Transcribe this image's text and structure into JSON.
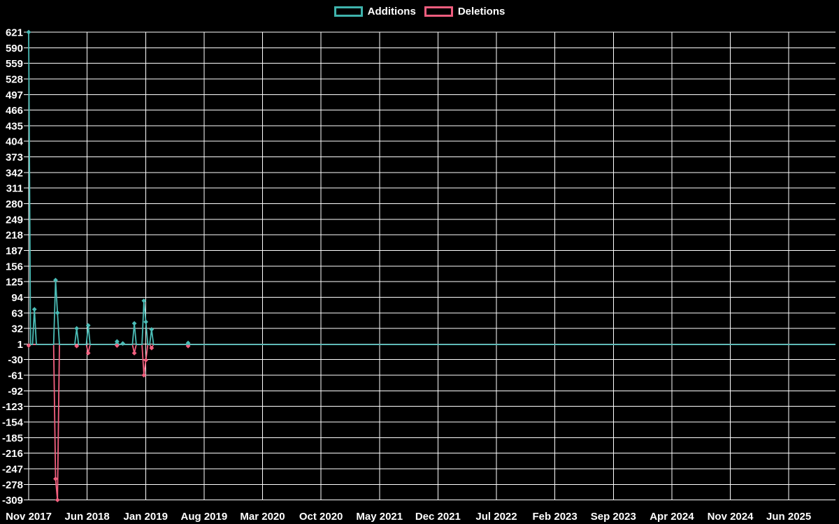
{
  "legend": {
    "items": [
      {
        "label": "Additions",
        "color": "#3fb3ac"
      },
      {
        "label": "Deletions",
        "color": "#ef5d7e"
      }
    ]
  },
  "colors": {
    "background": "#000000",
    "grid": "#ffffff",
    "text": "#ffffff",
    "additions": "#4bbcb6",
    "deletions": "#f2607f"
  },
  "chart_data": {
    "type": "line",
    "title": "",
    "legend_position": "top-center",
    "grid": true,
    "series_names": [
      "Additions",
      "Deletions"
    ],
    "x_axis": {
      "labels": [
        "Nov 2017",
        "Jun 2018",
        "Jan 2019",
        "Aug 2019",
        "Mar 2020",
        "Oct 2020",
        "May 2021",
        "Dec 2021",
        "Jul 2022",
        "Feb 2023",
        "Sep 2023",
        "Apr 2024",
        "Nov 2024",
        "Jun 2025"
      ],
      "tick_interval_months": 7
    },
    "y_axis": {
      "max": 621,
      "min": -309,
      "tick_step": 31,
      "ticks": [
        621,
        590,
        559,
        528,
        497,
        466,
        435,
        404,
        373,
        342,
        311,
        280,
        249,
        218,
        187,
        156,
        125,
        94,
        63,
        32,
        1,
        -30,
        -61,
        -92,
        -123,
        -154,
        -185,
        -216,
        -247,
        -278,
        -309
      ]
    },
    "weeks_total": 420,
    "default_point": {
      "additions": 0,
      "deletions": 0
    },
    "points": [
      {
        "week": 0,
        "additions": 621,
        "deletions": -2
      },
      {
        "week": 3,
        "additions": 70,
        "deletions": 0
      },
      {
        "week": 14,
        "additions": 128,
        "deletions": -267
      },
      {
        "week": 15,
        "additions": 63,
        "deletions": -309
      },
      {
        "week": 25,
        "additions": 32,
        "deletions": -3
      },
      {
        "week": 31,
        "additions": 38,
        "deletions": -17
      },
      {
        "week": 46,
        "additions": 6,
        "deletions": -2
      },
      {
        "week": 49,
        "additions": 2,
        "deletions": 0
      },
      {
        "week": 55,
        "additions": 42,
        "deletions": -17
      },
      {
        "week": 60,
        "additions": 87,
        "deletions": -61
      },
      {
        "week": 61,
        "additions": 45,
        "deletions": -31
      },
      {
        "week": 64,
        "additions": 30,
        "deletions": -7
      },
      {
        "week": 83,
        "additions": 3,
        "deletions": -3
      }
    ]
  }
}
